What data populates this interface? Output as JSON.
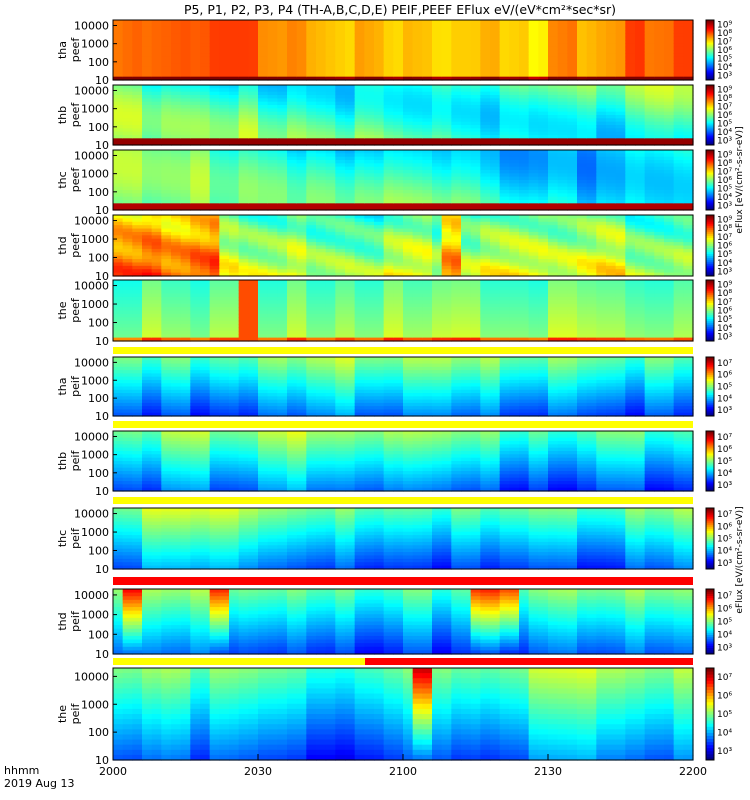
{
  "title": "P5, P1, P2, P3, P4 (TH-A,B,C,D,E) PEIF,PEEF EFlux eV/(eV*cm²*sec*sr)",
  "footer": {
    "time_label": "hhmm",
    "date_label": "2019 Aug 13"
  },
  "colorbar": {
    "electron_unit": "eFlux [eV/(cm²-s-sr-eV)]",
    "ion_unit": "eFlux [eV/(cm²-s-sr-eV)]"
  },
  "chart_data": {
    "type": "heatmap",
    "title": "P5, P1, P2, P3, P4 (TH-A,B,C,D,E) PEIF,PEEF EFlux eV/(eV*cm²*sec*sr)",
    "xlabel": "hhmm",
    "x_tick_labels": [
      "2000",
      "2030",
      "2100",
      "2130",
      "2200"
    ],
    "x_range": [
      "2019-08-13 20:00",
      "2019-08-13 22:00"
    ],
    "y_scale": "log",
    "y_range": [
      10,
      20000
    ],
    "y_tick_labels": [
      "10",
      "100",
      "1000",
      "10000"
    ],
    "panels": [
      {
        "name": "tha peef",
        "label_top": "tha",
        "label_bottom": "peef",
        "species": "electron",
        "cbar_ticks": [
          "10³",
          "10⁴",
          "10⁵",
          "10⁶",
          "10⁷",
          "10⁸",
          "10⁹"
        ]
      },
      {
        "name": "thb peef",
        "label_top": "thb",
        "label_bottom": "peef",
        "species": "electron",
        "cbar_ticks": [
          "10³",
          "10⁴",
          "10⁵",
          "10⁶",
          "10⁷",
          "10⁸",
          "10⁹"
        ]
      },
      {
        "name": "thc peef",
        "label_top": "thc",
        "label_bottom": "peef",
        "species": "electron",
        "cbar_ticks": [
          "10³",
          "10⁴",
          "10⁵",
          "10⁶",
          "10⁷",
          "10⁸",
          "10⁹"
        ]
      },
      {
        "name": "thd peef",
        "label_top": "thd",
        "label_bottom": "peef",
        "species": "electron",
        "cbar_ticks": [
          "10³",
          "10⁴",
          "10⁵",
          "10⁶",
          "10⁷",
          "10⁸",
          "10⁹"
        ]
      },
      {
        "name": "the peef",
        "label_top": "the",
        "label_bottom": "peef",
        "species": "electron",
        "cbar_ticks": [
          "10³",
          "10⁴",
          "10⁵",
          "10⁶",
          "10⁷",
          "10⁸",
          "10⁹"
        ]
      },
      {
        "name": "tha peif",
        "label_top": "tha",
        "label_bottom": "peif",
        "species": "ion",
        "cbar_ticks": [
          "10³",
          "10⁴",
          "10⁵",
          "10⁶",
          "10⁷"
        ]
      },
      {
        "name": "thb peif",
        "label_top": "thb",
        "label_bottom": "peif",
        "species": "ion",
        "cbar_ticks": [
          "10³",
          "10⁴",
          "10⁵",
          "10⁶",
          "10⁷"
        ]
      },
      {
        "name": "thc peif",
        "label_top": "thc",
        "label_bottom": "peif",
        "species": "ion",
        "cbar_ticks": [
          "10³",
          "10⁴",
          "10⁵",
          "10⁶",
          "10⁷"
        ]
      },
      {
        "name": "thd peif",
        "label_top": "thd",
        "label_bottom": "peif",
        "species": "ion",
        "cbar_ticks": [
          "10³",
          "10⁴",
          "10⁵",
          "10⁶",
          "10⁷"
        ]
      },
      {
        "name": "the peif",
        "label_top": "the",
        "label_bottom": "peif",
        "species": "ion",
        "cbar_ticks": [
          "10³",
          "10⁴",
          "10⁵",
          "10⁶",
          "10⁷"
        ]
      }
    ]
  }
}
